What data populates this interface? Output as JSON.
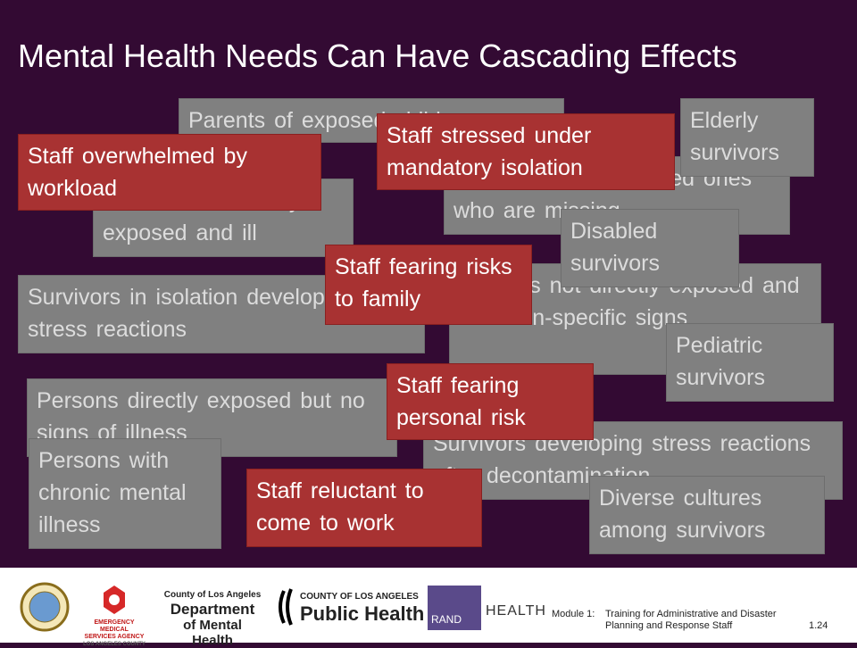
{
  "title": "Mental Health Needs Can Have Cascading Effects",
  "survivor_boxes": [
    "Parents of exposed children",
    "Persons with family exposed and ill",
    "Survivors seeking loved ones who are missing",
    "Elderly survivors",
    "Persons not directly exposed and with non-specific signs",
    "Disabled survivors",
    "Survivors in isolation developing stress reactions",
    "Pediatric survivors",
    "Persons directly exposed but no signs of illness",
    "Survivors developing stress reactions after decontamination",
    "Persons with chronic mental illness",
    "Diverse cultures among survivors"
  ],
  "staff_boxes": [
    "Staff overwhelmed by workload",
    "Staff stressed under mandatory isolation",
    "Staff fearing risks to family",
    "Staff fearing personal risk",
    "Staff reluctant to come to work"
  ],
  "footer": {
    "logos": {
      "ems": [
        "EMERGENCY MEDICAL",
        "SERVICES AGENCY",
        "LOS ANGELES COUNTY"
      ],
      "dmh": [
        "County of Los Angeles",
        "Department",
        "of Mental Health"
      ],
      "dph": [
        "COUNTY OF LOS ANGELES",
        "Public Health"
      ],
      "rand": [
        "RAND",
        "HEALTH"
      ]
    },
    "module": "Module 1:",
    "course": "Training for Administrative and Disaster Planning and Response Staff",
    "page": "1.24"
  }
}
